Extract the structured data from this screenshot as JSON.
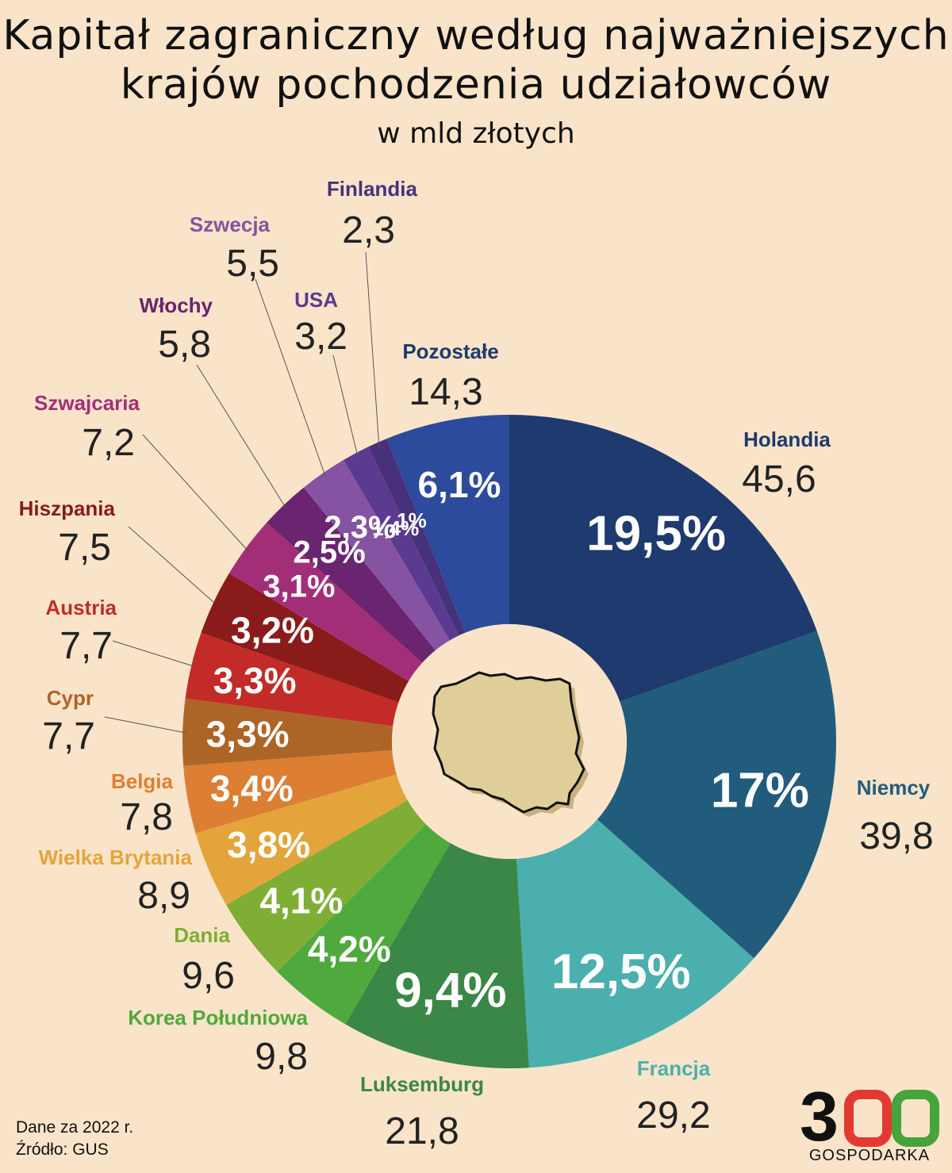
{
  "title_line1": "Kapitał zagraniczny według najważniejszych",
  "title_line2": "krajów pochodzenia udziałowców",
  "subtitle": "w mld złotych",
  "footer": {
    "line1": "Dane za 2022 r.",
    "line2": "Źródło: GUS"
  },
  "logo": {
    "number": "300",
    "name": "GOSPODARKA"
  },
  "chart_data": {
    "type": "pie",
    "title": "Kapitał zagraniczny według najważniejszych krajów pochodzenia udziałowców",
    "subtitle": "w mld złotych",
    "unit": "mld zł",
    "slices": [
      {
        "name": "Holandia",
        "value": 45.6,
        "value_label": "45,6",
        "percent_label": "19,5%",
        "color": "#1e3a6e"
      },
      {
        "name": "Niemcy",
        "value": 39.8,
        "value_label": "39,8",
        "percent_label": "17%",
        "color": "#215c7d"
      },
      {
        "name": "Francja",
        "value": 29.2,
        "value_label": "29,2",
        "percent_label": "12,5%",
        "color": "#4bb0ad"
      },
      {
        "name": "Luksemburg",
        "value": 21.8,
        "value_label": "21,8",
        "percent_label": "9,4%",
        "color": "#3a8747"
      },
      {
        "name": "Korea Południowa",
        "value": 9.8,
        "value_label": "9,8",
        "percent_label": "4,2%",
        "color": "#4fa93c"
      },
      {
        "name": "Dania",
        "value": 9.6,
        "value_label": "9,6",
        "percent_label": "4,1%",
        "color": "#7eae35"
      },
      {
        "name": "Wielka Brytania",
        "value": 8.9,
        "value_label": "8,9",
        "percent_label": "3,8%",
        "color": "#e3a53b"
      },
      {
        "name": "Belgia",
        "value": 7.8,
        "value_label": "7,8",
        "percent_label": "3,4%",
        "color": "#dc7f33"
      },
      {
        "name": "Cypr",
        "value": 7.7,
        "value_label": "7,7",
        "percent_label": "3,3%",
        "color": "#ad6527"
      },
      {
        "name": "Austria",
        "value": 7.7,
        "value_label": "7,7",
        "percent_label": "3,3%",
        "color": "#c22b27"
      },
      {
        "name": "Hiszpania",
        "value": 7.5,
        "value_label": "7,5",
        "percent_label": "3,2%",
        "color": "#891c1a"
      },
      {
        "name": "Szwajcaria",
        "value": 7.2,
        "value_label": "7,2",
        "percent_label": "3,1%",
        "color": "#a32e78"
      },
      {
        "name": "Włochy",
        "value": 5.8,
        "value_label": "5,8",
        "percent_label": "2,5%",
        "color": "#6a2470"
      },
      {
        "name": "Szwecja",
        "value": 5.5,
        "value_label": "5,5",
        "percent_label": "2,3%",
        "color": "#8553a1"
      },
      {
        "name": "USA",
        "value": 3.2,
        "value_label": "3,2",
        "percent_label": "1,4%",
        "color": "#5b3a91"
      },
      {
        "name": "Finlandia",
        "value": 2.3,
        "value_label": "2,3",
        "percent_label": "1%",
        "color": "#47317a"
      },
      {
        "name": "Pozostałe",
        "value": 14.3,
        "value_label": "14,3",
        "percent_label": "6,1%",
        "color": "#2d4b9c"
      }
    ]
  },
  "label_colors": {
    "Holandia": "#1e3a6e",
    "Niemcy": "#215c7d",
    "Francja": "#4bb0ad",
    "Luksemburg": "#3a8747",
    "Korea Południowa": "#4fa93c",
    "Dania": "#7eae35",
    "Wielka Brytania": "#e3a53b",
    "Belgia": "#dc7f33",
    "Cypr": "#ad6527",
    "Austria": "#c22b27",
    "Hiszpania": "#891c1a",
    "Szwajcaria": "#a32e78",
    "Włochy": "#6a2470",
    "Szwecja": "#8553a1",
    "USA": "#5b3a91",
    "Finlandia": "#47317a",
    "Pozostałe": "#1e3a6e"
  },
  "logo_colors": {
    "three": "#111111",
    "zero1": "#e23a33",
    "zero2": "#47a33c"
  }
}
